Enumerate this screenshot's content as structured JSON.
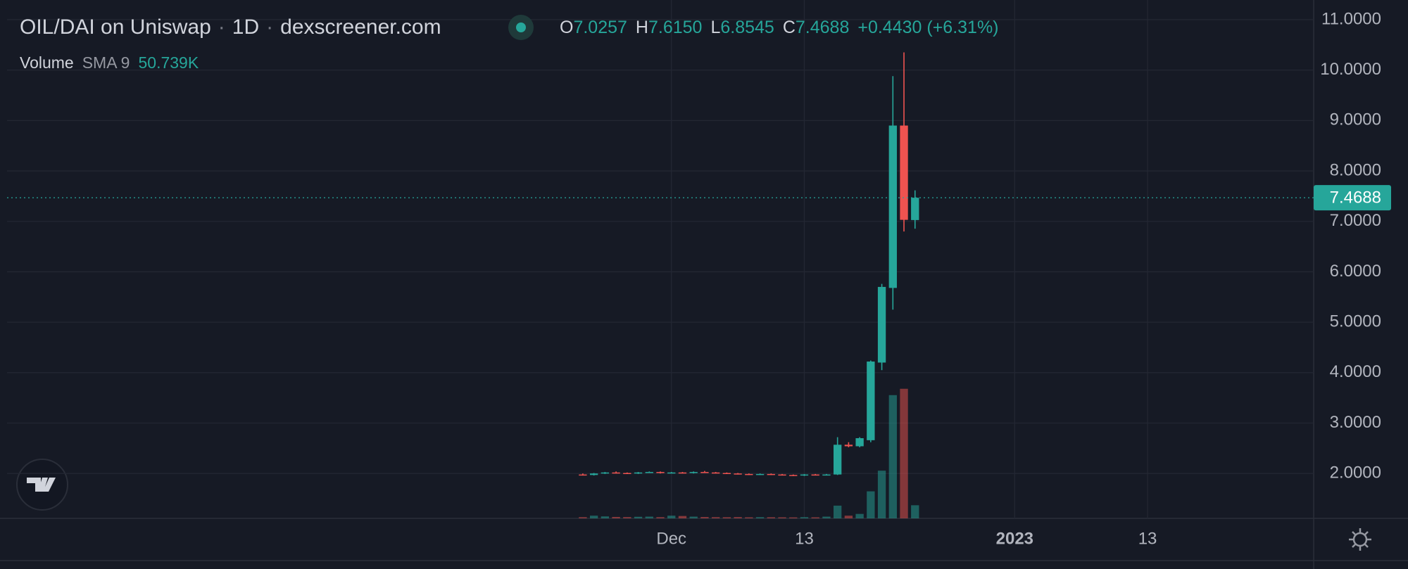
{
  "header": {
    "symbol": "OIL/DAI on Uniswap",
    "separator": "·",
    "interval": "1D",
    "source": "dexscreener.com"
  },
  "ohlc_legend": [
    {
      "key": "O",
      "label": "7.0257"
    },
    {
      "key": "H",
      "label": "7.6150"
    },
    {
      "key": "L",
      "label": "6.8545"
    },
    {
      "key": "C",
      "label": "7.4688"
    }
  ],
  "change": "+0.4430 (+6.31%)",
  "volume_legend": {
    "name": "Volume",
    "indicator": "SMA 9",
    "value": "50.739K"
  },
  "chart_data": {
    "type": "candlestick",
    "x": [
      "2022-11-23",
      "2022-11-24",
      "2022-11-25",
      "2022-11-26",
      "2022-11-27",
      "2022-11-28",
      "2022-11-29",
      "2022-11-30",
      "2022-12-01",
      "2022-12-02",
      "2022-12-03",
      "2022-12-04",
      "2022-12-05",
      "2022-12-06",
      "2022-12-07",
      "2022-12-08",
      "2022-12-09",
      "2022-12-10",
      "2022-12-11",
      "2022-12-12",
      "2022-12-13",
      "2022-12-14",
      "2022-12-15",
      "2022-12-16",
      "2022-12-17",
      "2022-12-18",
      "2022-12-19",
      "2022-12-20",
      "2022-12-21",
      "2022-12-22",
      "2022-12-23"
    ],
    "open": [
      1.98,
      1.97,
      2.0,
      2.02,
      2.01,
      2.0,
      2.02,
      2.03,
      2.01,
      2.02,
      2.01,
      2.03,
      2.02,
      2.01,
      2.0,
      1.99,
      1.98,
      1.99,
      1.98,
      1.97,
      1.96,
      1.98,
      1.97,
      1.98,
      2.57,
      2.54,
      2.66,
      4.2,
      5.68,
      8.9,
      7.0257
    ],
    "high": [
      2.0,
      2.01,
      2.03,
      2.04,
      2.02,
      2.03,
      2.04,
      2.04,
      2.03,
      2.03,
      2.04,
      2.05,
      2.03,
      2.02,
      2.01,
      2.0,
      2.0,
      2.0,
      1.99,
      1.98,
      1.99,
      1.99,
      1.99,
      2.72,
      2.62,
      2.72,
      4.24,
      5.76,
      9.88,
      10.35,
      7.615
    ],
    "low": [
      1.96,
      1.96,
      1.99,
      2.0,
      1.99,
      1.99,
      2.01,
      2.0,
      2.0,
      2.0,
      2.0,
      2.01,
      2.0,
      1.99,
      1.98,
      1.97,
      1.97,
      1.97,
      1.96,
      1.95,
      1.95,
      1.96,
      1.96,
      1.97,
      2.52,
      2.52,
      2.62,
      4.05,
      5.25,
      6.8,
      6.8545
    ],
    "close": [
      1.97,
      2.0,
      2.02,
      2.01,
      2.0,
      2.02,
      2.03,
      2.01,
      2.02,
      2.01,
      2.03,
      2.02,
      2.01,
      2.0,
      1.99,
      1.98,
      1.99,
      1.98,
      1.97,
      1.96,
      1.98,
      1.97,
      1.98,
      2.57,
      2.54,
      2.7,
      4.22,
      5.7,
      8.9,
      7.03,
      7.4688
    ],
    "volume": [
      1500,
      3400,
      2500,
      1800,
      1600,
      2000,
      2200,
      1500,
      3400,
      3000,
      2200,
      1700,
      1500,
      1400,
      1600,
      1300,
      1500,
      1400,
      1300,
      1200,
      1500,
      1300,
      2200,
      16000,
      3400,
      5600,
      34000,
      60000,
      155000,
      163000,
      16500
    ],
    "up_color": "#26a69a",
    "down_color": "#ef5350",
    "ylim": [
      1.11,
      11.39
    ],
    "yticks": [
      {
        "value": 2,
        "label": "2.0000"
      },
      {
        "value": 3,
        "label": "3.0000"
      },
      {
        "value": 4,
        "label": "4.0000"
      },
      {
        "value": 5,
        "label": "5.0000"
      },
      {
        "value": 6,
        "label": "6.0000"
      },
      {
        "value": 7,
        "label": "7.0000"
      },
      {
        "value": 8,
        "label": "8.0000"
      },
      {
        "value": 9,
        "label": "9.0000"
      },
      {
        "value": 10,
        "label": "10.0000"
      },
      {
        "value": 11,
        "label": "11.0000"
      }
    ],
    "xlim": [
      "2022-10-02",
      "2023-01-28"
    ],
    "xticks": [
      {
        "value": "2022-12-01",
        "label": "Dec"
      },
      {
        "value": "2022-12-13",
        "label": "13"
      },
      {
        "value": "2023-01-01",
        "label": "2023"
      },
      {
        "value": "2023-01-13",
        "label": "13"
      }
    ],
    "grid": true
  }
}
